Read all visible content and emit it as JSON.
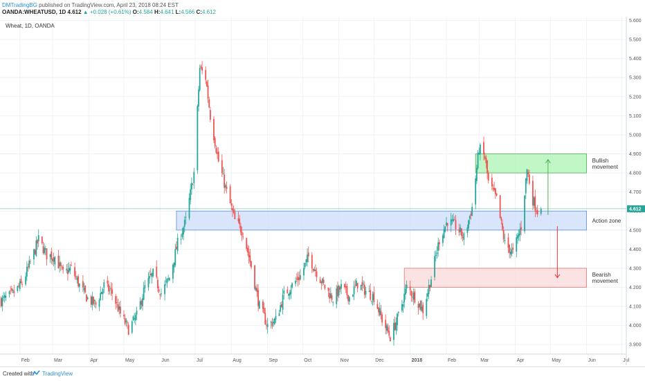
{
  "header": {
    "author": "DMTradingBG",
    "published": "published on TradingView.com, April 23, 2018 08:24 EST",
    "symbol": "OANDA:WHEATUSD, 1D",
    "last": "4.612",
    "change": "▲ +0.028 (+0.61%)",
    "ohlc": {
      "O": "4.584",
      "H": "4.641",
      "L": "4.566",
      "C": "4.612"
    }
  },
  "chart_label": "Wheat, 1D, OANDA",
  "footer": {
    "created": "Created with",
    "brand": "TradingView",
    "logo_icon": "tradingview-logo-icon"
  },
  "colors": {
    "up": "#26a69a",
    "down": "#ef5350",
    "grid": "#eef2f6",
    "current_line": "#26a69a"
  },
  "chart_data": {
    "type": "candlestick",
    "current_price": 4.612,
    "current_price_label": "4.612",
    "ylim": [
      3.85,
      5.62
    ],
    "y_ticks": [
      "5.600",
      "5.500",
      "5.400",
      "5.300",
      "5.200",
      "5.100",
      "5.000",
      "4.900",
      "4.800",
      "4.700",
      "4.600",
      "4.500",
      "4.400",
      "4.300",
      "4.200",
      "4.100",
      "4.000",
      "3.900"
    ],
    "x_ticks": [
      "Feb",
      "Mar",
      "Apr",
      "May",
      "Jun",
      "Jul",
      "Aug",
      "Sep",
      "Oct",
      "Nov",
      "Dec",
      "2018",
      "Feb",
      "Mar",
      "Apr",
      "May",
      "Jun",
      "Jul"
    ],
    "x_tick_dates": [
      "2017-02-01",
      "2017-03-01",
      "2017-04-01",
      "2017-05-01",
      "2017-06-01",
      "2017-07-01",
      "2017-08-01",
      "2017-09-01",
      "2017-10-01",
      "2017-11-01",
      "2017-12-01",
      "2018-01-01",
      "2018-02-01",
      "2018-03-01",
      "2018-04-01",
      "2018-05-01",
      "2018-06-01",
      "2018-07-01"
    ],
    "xlim": [
      "2017-01-15",
      "2018-07-05"
    ],
    "close_path": [
      [
        "2017-01-16",
        4.13
      ],
      [
        "2017-01-25",
        4.16
      ],
      [
        "2017-02-03",
        4.22
      ],
      [
        "2017-02-10",
        4.33
      ],
      [
        "2017-02-17",
        4.45
      ],
      [
        "2017-02-24",
        4.37
      ],
      [
        "2017-03-03",
        4.36
      ],
      [
        "2017-03-10",
        4.27
      ],
      [
        "2017-03-17",
        4.3
      ],
      [
        "2017-03-24",
        4.21
      ],
      [
        "2017-03-31",
        4.14
      ],
      [
        "2017-04-07",
        4.11
      ],
      [
        "2017-04-14",
        4.21
      ],
      [
        "2017-04-21",
        4.17
      ],
      [
        "2017-04-28",
        4.06
      ],
      [
        "2017-05-05",
        3.98
      ],
      [
        "2017-05-12",
        4.05
      ],
      [
        "2017-05-19",
        4.2
      ],
      [
        "2017-05-26",
        4.27
      ],
      [
        "2017-06-02",
        4.17
      ],
      [
        "2017-06-09",
        4.25
      ],
      [
        "2017-06-16",
        4.43
      ],
      [
        "2017-06-23",
        4.55
      ],
      [
        "2017-06-30",
        4.8
      ],
      [
        "2017-07-05",
        5.35
      ],
      [
        "2017-07-10",
        5.3
      ],
      [
        "2017-07-14",
        5.1
      ],
      [
        "2017-07-21",
        4.86
      ],
      [
        "2017-07-28",
        4.7
      ],
      [
        "2017-08-04",
        4.55
      ],
      [
        "2017-08-11",
        4.49
      ],
      [
        "2017-08-18",
        4.31
      ],
      [
        "2017-08-25",
        4.1
      ],
      [
        "2017-09-01",
        4.0
      ],
      [
        "2017-09-08",
        4.03
      ],
      [
        "2017-09-15",
        4.16
      ],
      [
        "2017-09-22",
        4.21
      ],
      [
        "2017-09-29",
        4.26
      ],
      [
        "2017-10-06",
        4.36
      ],
      [
        "2017-10-13",
        4.28
      ],
      [
        "2017-10-20",
        4.2
      ],
      [
        "2017-10-27",
        4.14
      ],
      [
        "2017-11-03",
        4.2
      ],
      [
        "2017-11-10",
        4.15
      ],
      [
        "2017-11-17",
        4.22
      ],
      [
        "2017-11-24",
        4.18
      ],
      [
        "2017-12-01",
        4.15
      ],
      [
        "2017-12-08",
        4.03
      ],
      [
        "2017-12-15",
        3.94
      ],
      [
        "2017-12-22",
        4.05
      ],
      [
        "2017-12-29",
        4.2
      ],
      [
        "2018-01-05",
        4.15
      ],
      [
        "2018-01-12",
        4.08
      ],
      [
        "2018-01-19",
        4.25
      ],
      [
        "2018-01-26",
        4.45
      ],
      [
        "2018-02-02",
        4.55
      ],
      [
        "2018-02-09",
        4.52
      ],
      [
        "2018-02-16",
        4.46
      ],
      [
        "2018-02-23",
        4.62
      ],
      [
        "2018-03-01",
        4.93
      ],
      [
        "2018-03-06",
        4.88
      ],
      [
        "2018-03-09",
        4.75
      ],
      [
        "2018-03-16",
        4.66
      ],
      [
        "2018-03-23",
        4.43
      ],
      [
        "2018-03-30",
        4.38
      ],
      [
        "2018-04-06",
        4.52
      ],
      [
        "2018-04-11",
        4.82
      ],
      [
        "2018-04-16",
        4.66
      ],
      [
        "2018-04-20",
        4.6
      ],
      [
        "2018-04-23",
        4.612
      ]
    ],
    "zones": [
      {
        "key": "bullish",
        "label_lines": [
          "Bullish",
          "movement"
        ],
        "start": "2018-02-26",
        "end": "2018-06-01",
        "y_low": 4.8,
        "y_high": 4.9,
        "fill": "#b2f5b8",
        "stroke": "#4caf50"
      },
      {
        "key": "action",
        "label_lines": [
          "Action zone"
        ],
        "start": "2017-06-15",
        "end": "2018-06-01",
        "y_low": 4.5,
        "y_high": 4.6,
        "fill": "#cfdff9",
        "stroke": "#5b8fd6"
      },
      {
        "key": "bearish",
        "label_lines": [
          "Bearish",
          "movement"
        ],
        "start": "2017-12-27",
        "end": "2018-06-01",
        "y_low": 4.2,
        "y_high": 4.3,
        "fill": "#fbdcdc",
        "stroke": "#e57373"
      }
    ],
    "arrows": [
      {
        "key": "up",
        "date": "2018-04-29",
        "from": 4.58,
        "to": 4.87,
        "color": "#4caf50"
      },
      {
        "key": "down",
        "date": "2018-05-07",
        "from": 4.52,
        "to": 4.25,
        "color": "#e53935"
      }
    ]
  }
}
